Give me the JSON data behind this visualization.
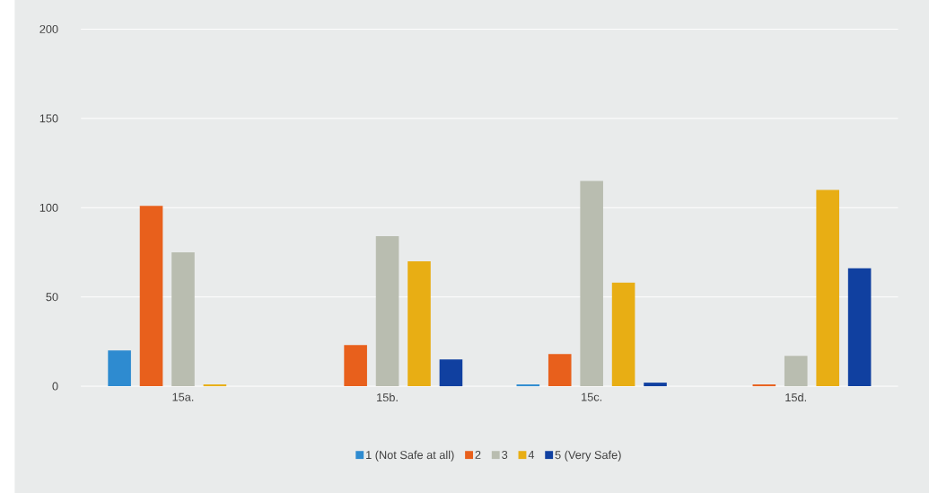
{
  "chart_data": {
    "type": "bar",
    "categories": [
      "15a.",
      "15b.",
      "15c.",
      "15d."
    ],
    "series": [
      {
        "name": "1 (Not Safe at all)",
        "color": "#2e8bd0",
        "values": [
          20,
          0,
          1,
          0
        ]
      },
      {
        "name": "2",
        "color": "#e8601c",
        "values": [
          101,
          23,
          18,
          1
        ]
      },
      {
        "name": "3",
        "color": "#b9bdb0",
        "values": [
          75,
          84,
          115,
          17
        ]
      },
      {
        "name": "4",
        "color": "#e8ae14",
        "values": [
          1,
          70,
          58,
          110
        ]
      },
      {
        "name": "5 (Very Safe)",
        "color": "#1040a0",
        "values": [
          0,
          15,
          2,
          66
        ]
      }
    ],
    "ylim": [
      0,
      200
    ],
    "yticks": [
      0,
      50,
      100,
      150,
      200
    ],
    "grid": "y",
    "legend": "bottom"
  }
}
